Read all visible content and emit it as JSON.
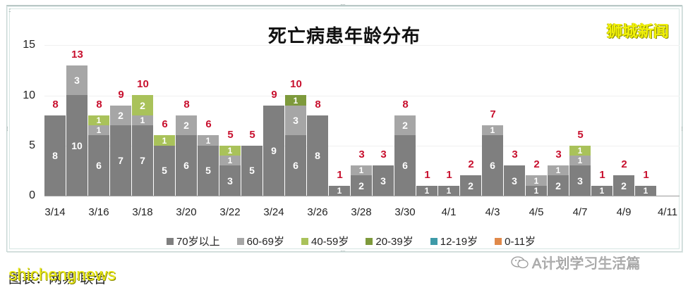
{
  "title": "死亡病患年龄分布",
  "watermark_top": "狮城新闻",
  "caption_left": "图表：网易·联合",
  "caption_left_overlay": "shichengnews",
  "caption_right": "A计划学习生活篇",
  "colors": {
    "70_plus": "#7f7f7f",
    "60_69": "#a6a6a6",
    "40_59": "#a9c25a",
    "20_39": "#7e9a3c",
    "12_19": "#3e9aa8",
    "0_11": "#e0894a",
    "total_label": "#c8102e"
  },
  "legend": [
    {
      "label": "70岁以上",
      "color": "#7f7f7f"
    },
    {
      "label": "60-69岁",
      "color": "#a6a6a6"
    },
    {
      "label": "40-59岁",
      "color": "#a9c25a"
    },
    {
      "label": "20-39岁",
      "color": "#7e9a3c"
    },
    {
      "label": "12-19岁",
      "color": "#3e9aa8"
    },
    {
      "label": "0-11岁",
      "color": "#e0894a"
    }
  ],
  "chart_data": {
    "type": "bar",
    "stacked": true,
    "title": "死亡病患年龄分布",
    "xlabel": "",
    "ylabel": "",
    "ylim": [
      0,
      15
    ],
    "yticks": [
      0,
      5,
      10,
      15
    ],
    "grid": true,
    "legend_position": "bottom",
    "categories": [
      "3/14",
      "3/15",
      "3/16",
      "3/17",
      "3/18",
      "3/19",
      "3/20",
      "3/21",
      "3/22",
      "3/23",
      "3/24",
      "3/25",
      "3/26",
      "3/27",
      "3/28",
      "3/29",
      "3/30",
      "3/31",
      "4/1",
      "4/2",
      "4/3",
      "4/4",
      "4/5",
      "4/6",
      "4/7",
      "4/8",
      "4/9",
      "4/10",
      "4/11"
    ],
    "xtick_labels": [
      "3/14",
      "3/16",
      "3/18",
      "3/20",
      "3/22",
      "3/24",
      "3/26",
      "3/28",
      "3/30",
      "4/1",
      "4/3",
      "4/5",
      "4/7",
      "4/9",
      "4/11"
    ],
    "series": [
      {
        "name": "70岁以上",
        "values": [
          8,
          10,
          6,
          7,
          7,
          5,
          6,
          5,
          3,
          5,
          9,
          6,
          8,
          1,
          2,
          3,
          6,
          1,
          1,
          2,
          6,
          3,
          1,
          2,
          3,
          1,
          2,
          1,
          0
        ]
      },
      {
        "name": "60-69岁",
        "values": [
          0,
          3,
          1,
          2,
          1,
          0,
          2,
          1,
          1,
          0,
          0,
          3,
          0,
          0,
          1,
          0,
          2,
          0,
          0,
          0,
          1,
          0,
          1,
          1,
          1,
          0,
          0,
          0,
          0
        ]
      },
      {
        "name": "40-59岁",
        "values": [
          0,
          0,
          1,
          0,
          2,
          1,
          0,
          0,
          1,
          0,
          0,
          0,
          0,
          0,
          0,
          0,
          0,
          0,
          0,
          0,
          0,
          0,
          0,
          0,
          1,
          0,
          0,
          0,
          0
        ]
      },
      {
        "name": "20-39岁",
        "values": [
          0,
          0,
          0,
          0,
          0,
          0,
          0,
          0,
          0,
          0,
          0,
          1,
          0,
          0,
          0,
          0,
          0,
          0,
          0,
          0,
          0,
          0,
          0,
          0,
          0,
          0,
          0,
          0,
          0
        ]
      },
      {
        "name": "12-19岁",
        "values": [
          0,
          0,
          0,
          0,
          0,
          0,
          0,
          0,
          0,
          0,
          0,
          0,
          0,
          0,
          0,
          0,
          0,
          0,
          0,
          0,
          0,
          0,
          0,
          0,
          0,
          0,
          0,
          0,
          0
        ]
      },
      {
        "name": "0-11岁",
        "values": [
          0,
          0,
          0,
          0,
          0,
          0,
          0,
          0,
          0,
          0,
          0,
          0,
          0,
          0,
          0,
          0,
          0,
          0,
          0,
          0,
          0,
          0,
          0,
          0,
          0,
          0,
          0,
          0,
          0
        ]
      }
    ],
    "totals": [
      8,
      13,
      8,
      9,
      10,
      6,
      8,
      6,
      5,
      5,
      9,
      10,
      8,
      1,
      3,
      3,
      8,
      1,
      1,
      2,
      7,
      3,
      2,
      3,
      5,
      1,
      2,
      1,
      null
    ]
  }
}
